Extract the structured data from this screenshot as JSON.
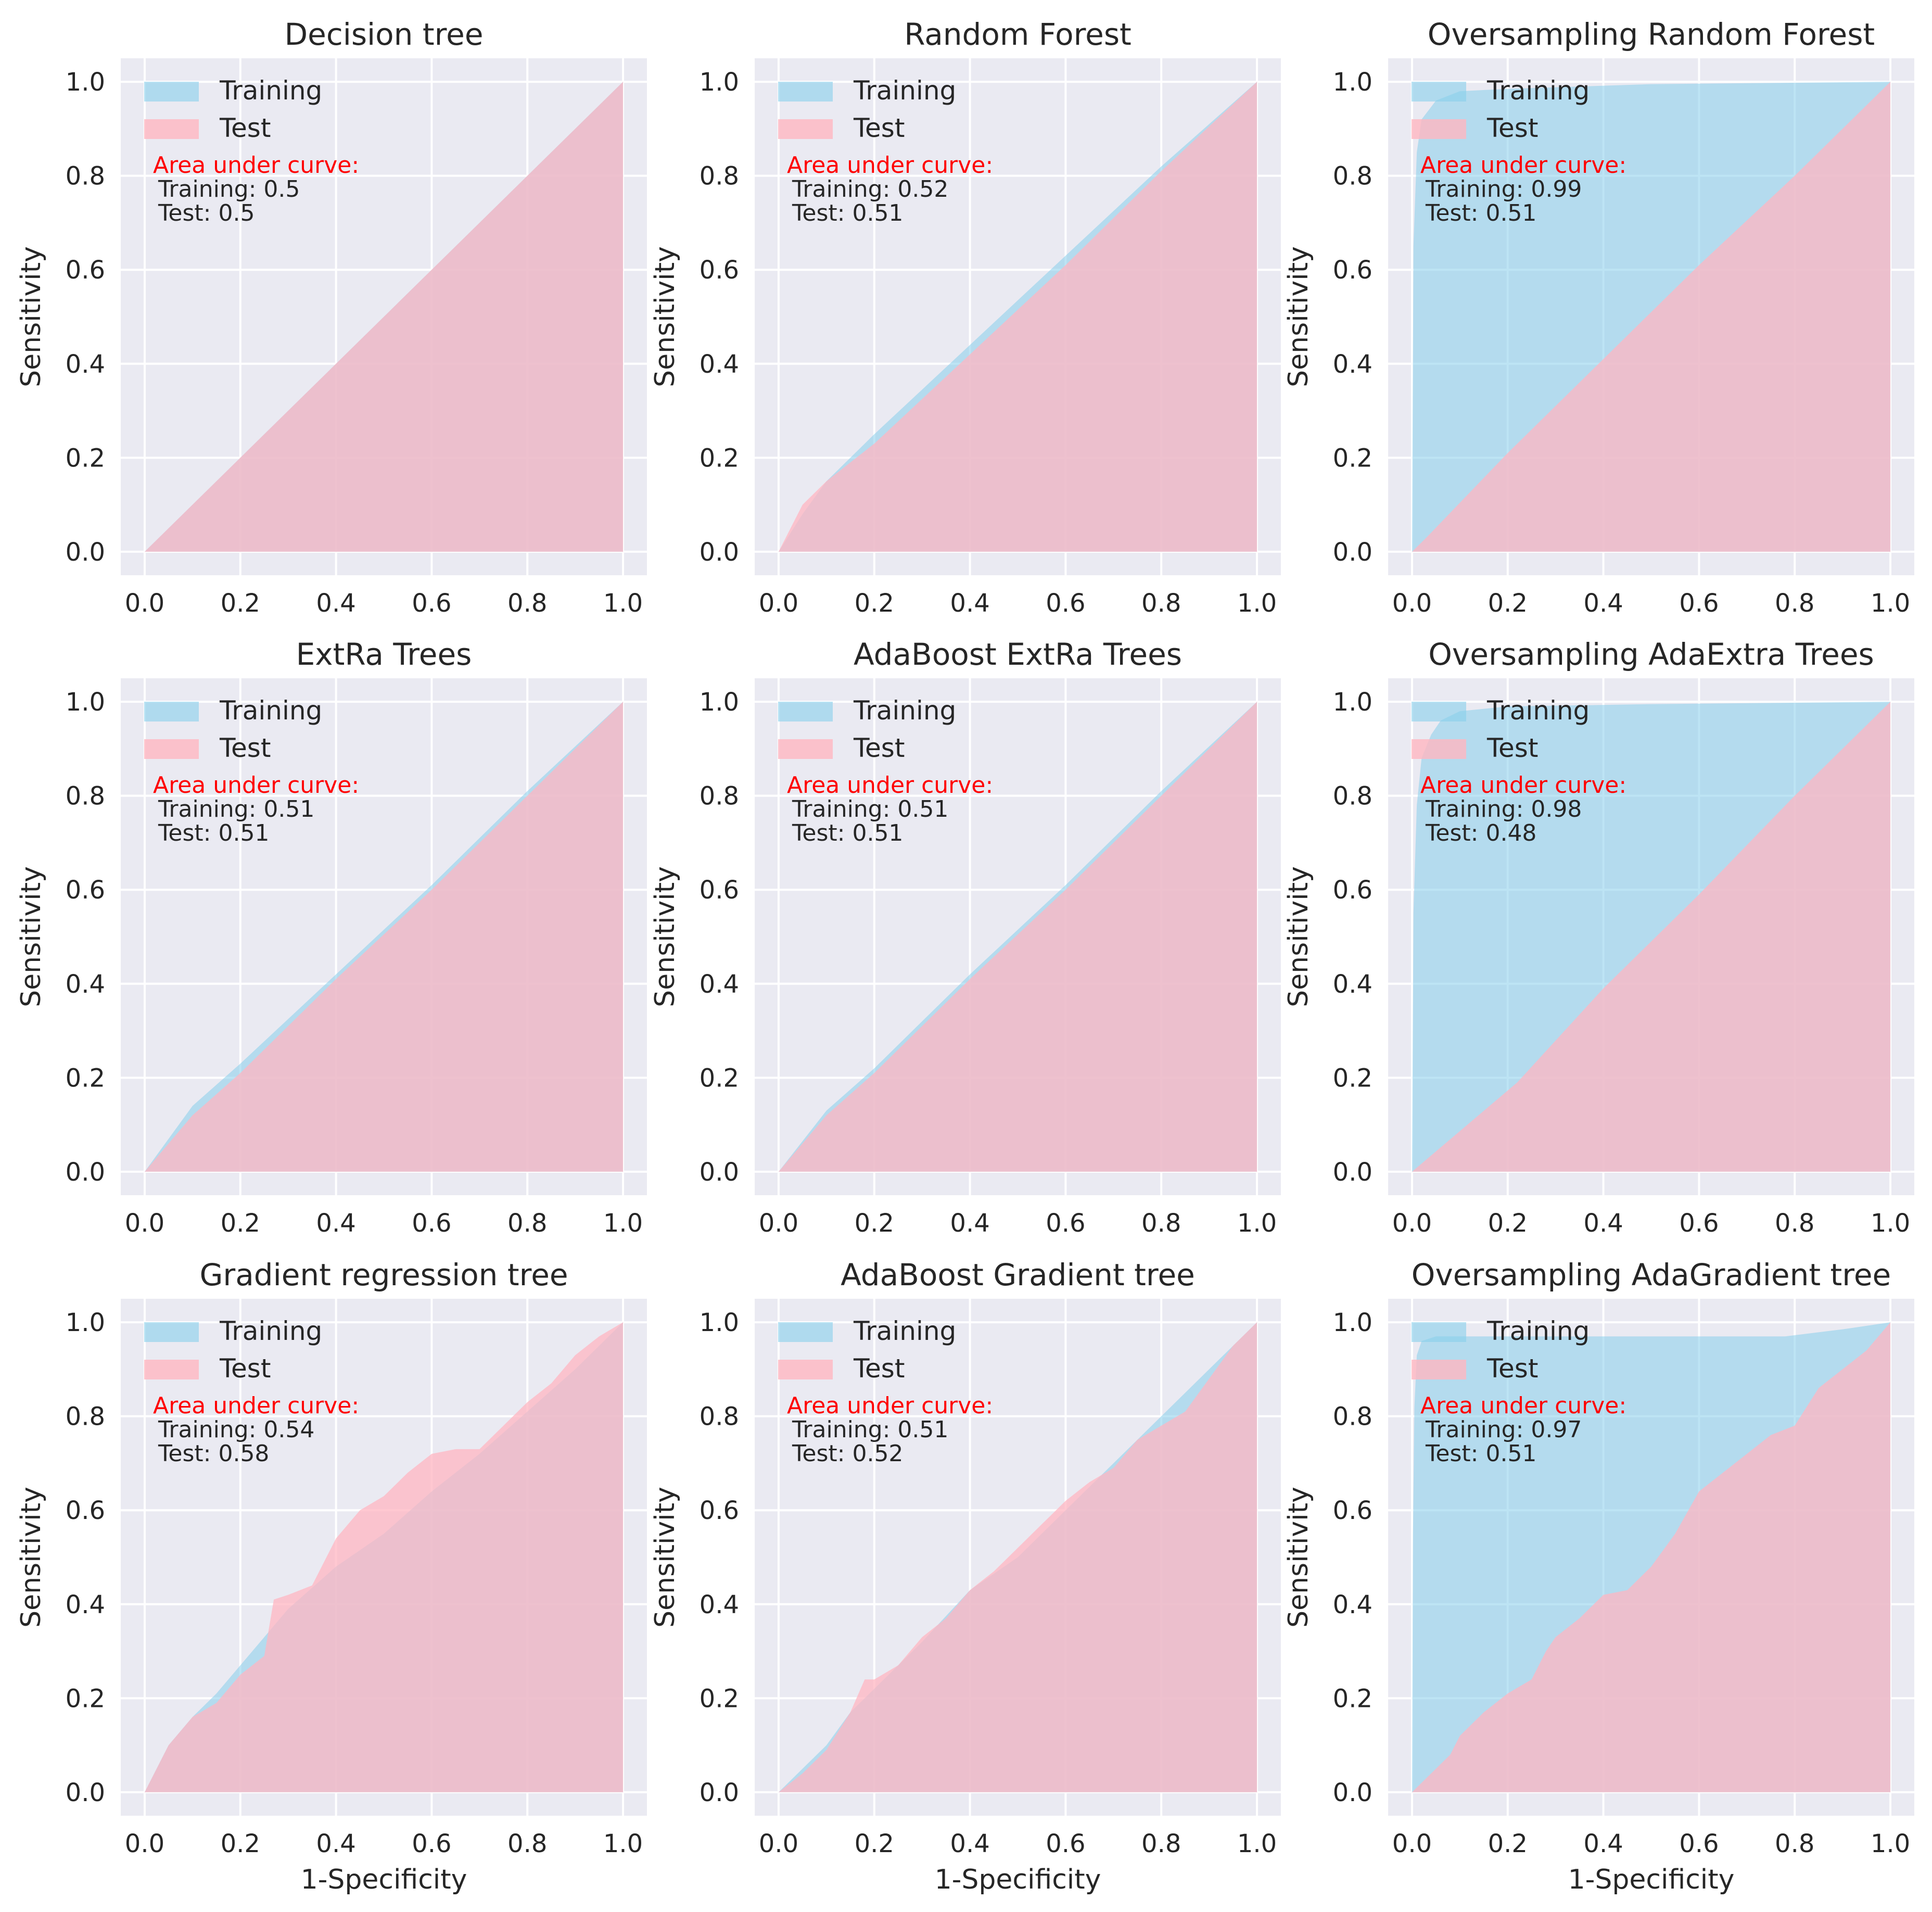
{
  "colors": {
    "plot_background": "#eaeaf2",
    "grid": "#ffffff",
    "training_fill": "#87ceeb",
    "test_fill": "#ffb6c1",
    "auc_title": "#ff0000",
    "text": "#262626"
  },
  "chart_data": [
    {
      "type": "area",
      "title": "Decision tree",
      "xlabel": "",
      "ylabel": "Sensitivity",
      "xlim": [
        0,
        1
      ],
      "ylim": [
        0,
        1
      ],
      "xticks": [
        "0.0",
        "0.2",
        "0.4",
        "0.6",
        "0.8",
        "1.0"
      ],
      "yticks": [
        "0.0",
        "0.2",
        "0.4",
        "0.6",
        "0.8",
        "1.0"
      ],
      "grid": true,
      "legend": "top-left",
      "auc_title": "Area under curve:",
      "auc_training": "Training: 0.5",
      "auc_test": "Test: 0.5",
      "series": [
        {
          "name": "Training",
          "x": [
            0,
            1
          ],
          "y": [
            0,
            1
          ]
        },
        {
          "name": "Test",
          "x": [
            0,
            1
          ],
          "y": [
            0,
            1
          ]
        }
      ]
    },
    {
      "type": "area",
      "title": "Random Forest",
      "xlabel": "",
      "ylabel": "Sensitivity",
      "xlim": [
        0,
        1
      ],
      "ylim": [
        0,
        1
      ],
      "xticks": [
        "0.0",
        "0.2",
        "0.4",
        "0.6",
        "0.8",
        "1.0"
      ],
      "yticks": [
        "0.0",
        "0.2",
        "0.4",
        "0.6",
        "0.8",
        "1.0"
      ],
      "grid": true,
      "legend": "top-left",
      "auc_title": "Area under curve:",
      "auc_training": "Training: 0.52",
      "auc_test": "Test: 0.51",
      "series": [
        {
          "name": "Training",
          "x": [
            0,
            0.05,
            0.1,
            0.2,
            0.4,
            0.6,
            0.8,
            1
          ],
          "y": [
            0,
            0.08,
            0.15,
            0.25,
            0.44,
            0.63,
            0.82,
            1
          ]
        },
        {
          "name": "Test",
          "x": [
            0,
            0.05,
            0.1,
            0.2,
            0.4,
            0.6,
            0.8,
            1
          ],
          "y": [
            0,
            0.1,
            0.15,
            0.23,
            0.42,
            0.61,
            0.81,
            1
          ]
        }
      ]
    },
    {
      "type": "area",
      "title": "Oversampling Random Forest",
      "xlabel": "",
      "ylabel": "Sensitivity",
      "xlim": [
        0,
        1
      ],
      "ylim": [
        0,
        1
      ],
      "xticks": [
        "0.0",
        "0.2",
        "0.4",
        "0.6",
        "0.8",
        "1.0"
      ],
      "yticks": [
        "0.0",
        "0.2",
        "0.4",
        "0.6",
        "0.8",
        "1.0"
      ],
      "grid": true,
      "legend": "top-left",
      "auc_title": "Area under curve:",
      "auc_training": "Training: 0.99",
      "auc_test": "Test: 0.51",
      "series": [
        {
          "name": "Training",
          "x": [
            0,
            0.003,
            0.01,
            0.02,
            0.05,
            0.1,
            0.2,
            0.5,
            1
          ],
          "y": [
            0,
            0.65,
            0.85,
            0.92,
            0.96,
            0.98,
            0.985,
            0.995,
            1
          ]
        },
        {
          "name": "Test",
          "x": [
            0,
            0.03,
            0.2,
            0.4,
            0.6,
            0.8,
            1
          ],
          "y": [
            0,
            0.03,
            0.21,
            0.41,
            0.61,
            0.8,
            1
          ]
        }
      ]
    },
    {
      "type": "area",
      "title": "ExtRa Trees",
      "xlabel": "",
      "ylabel": "Sensitivity",
      "xlim": [
        0,
        1
      ],
      "ylim": [
        0,
        1
      ],
      "xticks": [
        "0.0",
        "0.2",
        "0.4",
        "0.6",
        "0.8",
        "1.0"
      ],
      "yticks": [
        "0.0",
        "0.2",
        "0.4",
        "0.6",
        "0.8",
        "1.0"
      ],
      "grid": true,
      "legend": "top-left",
      "auc_title": "Area under curve:",
      "auc_training": "Training: 0.51",
      "auc_test": "Test: 0.51",
      "series": [
        {
          "name": "Training",
          "x": [
            0,
            0.1,
            0.2,
            0.4,
            0.6,
            0.8,
            1
          ],
          "y": [
            0,
            0.14,
            0.23,
            0.42,
            0.61,
            0.81,
            1
          ]
        },
        {
          "name": "Test",
          "x": [
            0,
            0.1,
            0.2,
            0.4,
            0.6,
            0.8,
            1
          ],
          "y": [
            0,
            0.12,
            0.21,
            0.41,
            0.6,
            0.8,
            1
          ]
        }
      ]
    },
    {
      "type": "area",
      "title": "AdaBoost ExtRa Trees",
      "xlabel": "",
      "ylabel": "Sensitivity",
      "xlim": [
        0,
        1
      ],
      "ylim": [
        0,
        1
      ],
      "xticks": [
        "0.0",
        "0.2",
        "0.4",
        "0.6",
        "0.8",
        "1.0"
      ],
      "yticks": [
        "0.0",
        "0.2",
        "0.4",
        "0.6",
        "0.8",
        "1.0"
      ],
      "grid": true,
      "legend": "top-left",
      "auc_title": "Area under curve:",
      "auc_training": "Training: 0.51",
      "auc_test": "Test: 0.51",
      "series": [
        {
          "name": "Training",
          "x": [
            0,
            0.1,
            0.2,
            0.4,
            0.6,
            0.8,
            1
          ],
          "y": [
            0,
            0.13,
            0.22,
            0.42,
            0.61,
            0.81,
            1
          ]
        },
        {
          "name": "Test",
          "x": [
            0,
            0.1,
            0.2,
            0.4,
            0.6,
            0.8,
            1
          ],
          "y": [
            0,
            0.12,
            0.21,
            0.41,
            0.6,
            0.8,
            1
          ]
        }
      ]
    },
    {
      "type": "area",
      "title": "Oversampling AdaExtra Trees",
      "xlabel": "",
      "ylabel": "Sensitivity",
      "xlim": [
        0,
        1
      ],
      "ylim": [
        0,
        1
      ],
      "xticks": [
        "0.0",
        "0.2",
        "0.4",
        "0.6",
        "0.8",
        "1.0"
      ],
      "yticks": [
        "0.0",
        "0.2",
        "0.4",
        "0.6",
        "0.8",
        "1.0"
      ],
      "grid": true,
      "legend": "top-left",
      "auc_title": "Area under curve:",
      "auc_training": "Training: 0.98",
      "auc_test": "Test: 0.48",
      "series": [
        {
          "name": "Training",
          "x": [
            0,
            0.003,
            0.01,
            0.02,
            0.04,
            0.06,
            0.1,
            0.2,
            0.5,
            1
          ],
          "y": [
            0,
            0.55,
            0.78,
            0.88,
            0.93,
            0.96,
            0.98,
            0.99,
            0.995,
            1
          ]
        },
        {
          "name": "Test",
          "x": [
            0,
            0.22,
            0.4,
            0.6,
            0.8,
            1
          ],
          "y": [
            0,
            0.19,
            0.39,
            0.59,
            0.8,
            1
          ]
        }
      ]
    },
    {
      "type": "area",
      "title": "Gradient regression tree",
      "xlabel": "1-Specificity",
      "ylabel": "Sensitivity",
      "xlim": [
        0,
        1
      ],
      "ylim": [
        0,
        1
      ],
      "xticks": [
        "0.0",
        "0.2",
        "0.4",
        "0.6",
        "0.8",
        "1.0"
      ],
      "yticks": [
        "0.0",
        "0.2",
        "0.4",
        "0.6",
        "0.8",
        "1.0"
      ],
      "grid": true,
      "legend": "top-left",
      "auc_title": "Area under curve:",
      "auc_training": "Training: 0.54",
      "auc_test": "Test: 0.58",
      "series": [
        {
          "name": "Training",
          "x": [
            0,
            0.05,
            0.1,
            0.15,
            0.2,
            0.3,
            0.4,
            0.5,
            0.6,
            0.7,
            0.8,
            0.9,
            1
          ],
          "y": [
            0,
            0.1,
            0.16,
            0.21,
            0.27,
            0.39,
            0.48,
            0.55,
            0.64,
            0.72,
            0.81,
            0.9,
            1
          ]
        },
        {
          "name": "Test",
          "x": [
            0,
            0.05,
            0.1,
            0.15,
            0.2,
            0.25,
            0.27,
            0.3,
            0.35,
            0.4,
            0.45,
            0.5,
            0.55,
            0.6,
            0.65,
            0.7,
            0.75,
            0.8,
            0.85,
            0.9,
            0.95,
            1
          ],
          "y": [
            0,
            0.1,
            0.16,
            0.19,
            0.25,
            0.29,
            0.41,
            0.42,
            0.44,
            0.54,
            0.6,
            0.63,
            0.68,
            0.72,
            0.73,
            0.73,
            0.78,
            0.83,
            0.87,
            0.93,
            0.97,
            1
          ]
        }
      ]
    },
    {
      "type": "area",
      "title": "AdaBoost Gradient tree",
      "xlabel": "1-Specificity",
      "ylabel": "Sensitivity",
      "xlim": [
        0,
        1
      ],
      "ylim": [
        0,
        1
      ],
      "xticks": [
        "0.0",
        "0.2",
        "0.4",
        "0.6",
        "0.8",
        "1.0"
      ],
      "yticks": [
        "0.0",
        "0.2",
        "0.4",
        "0.6",
        "0.8",
        "1.0"
      ],
      "grid": true,
      "legend": "top-left",
      "auc_title": "Area under curve:",
      "auc_training": "Training: 0.51",
      "auc_test": "Test: 0.52",
      "series": [
        {
          "name": "Training",
          "x": [
            0,
            0.05,
            0.1,
            0.15,
            0.2,
            0.3,
            0.4,
            0.5,
            0.6,
            0.7,
            0.8,
            0.9,
            1
          ],
          "y": [
            0,
            0.05,
            0.1,
            0.17,
            0.22,
            0.32,
            0.43,
            0.5,
            0.6,
            0.7,
            0.8,
            0.9,
            1
          ]
        },
        {
          "name": "Test",
          "x": [
            0,
            0.05,
            0.1,
            0.15,
            0.18,
            0.2,
            0.25,
            0.3,
            0.35,
            0.4,
            0.45,
            0.5,
            0.55,
            0.6,
            0.65,
            0.7,
            0.75,
            0.8,
            0.85,
            0.9,
            0.95,
            1
          ],
          "y": [
            0,
            0.04,
            0.09,
            0.17,
            0.24,
            0.24,
            0.27,
            0.33,
            0.37,
            0.43,
            0.47,
            0.52,
            0.57,
            0.62,
            0.66,
            0.69,
            0.75,
            0.78,
            0.81,
            0.88,
            0.95,
            1
          ]
        }
      ]
    },
    {
      "type": "area",
      "title": "Oversampling AdaGradient tree",
      "xlabel": "1-Specificity",
      "ylabel": "Sensitivity",
      "xlim": [
        0,
        1
      ],
      "ylim": [
        0,
        1
      ],
      "xticks": [
        "0.0",
        "0.2",
        "0.4",
        "0.6",
        "0.8",
        "1.0"
      ],
      "yticks": [
        "0.0",
        "0.2",
        "0.4",
        "0.6",
        "0.8",
        "1.0"
      ],
      "grid": true,
      "legend": "top-left",
      "auc_title": "Area under curve:",
      "auc_training": "Training: 0.97",
      "auc_test": "Test: 0.51",
      "series": [
        {
          "name": "Training",
          "x": [
            0,
            0.002,
            0.005,
            0.01,
            0.02,
            0.05,
            0.1,
            0.3,
            0.5,
            0.78,
            0.9,
            1
          ],
          "y": [
            0,
            0.55,
            0.82,
            0.93,
            0.96,
            0.97,
            0.97,
            0.97,
            0.97,
            0.97,
            0.985,
            1
          ]
        },
        {
          "name": "Test",
          "x": [
            0,
            0.02,
            0.05,
            0.08,
            0.1,
            0.15,
            0.2,
            0.25,
            0.28,
            0.3,
            0.35,
            0.4,
            0.45,
            0.5,
            0.55,
            0.6,
            0.65,
            0.7,
            0.75,
            0.8,
            0.85,
            0.9,
            0.95,
            1
          ],
          "y": [
            0,
            0.02,
            0.05,
            0.08,
            0.12,
            0.17,
            0.21,
            0.24,
            0.3,
            0.33,
            0.37,
            0.42,
            0.43,
            0.48,
            0.55,
            0.64,
            0.68,
            0.72,
            0.76,
            0.78,
            0.86,
            0.9,
            0.94,
            1
          ]
        }
      ]
    }
  ]
}
